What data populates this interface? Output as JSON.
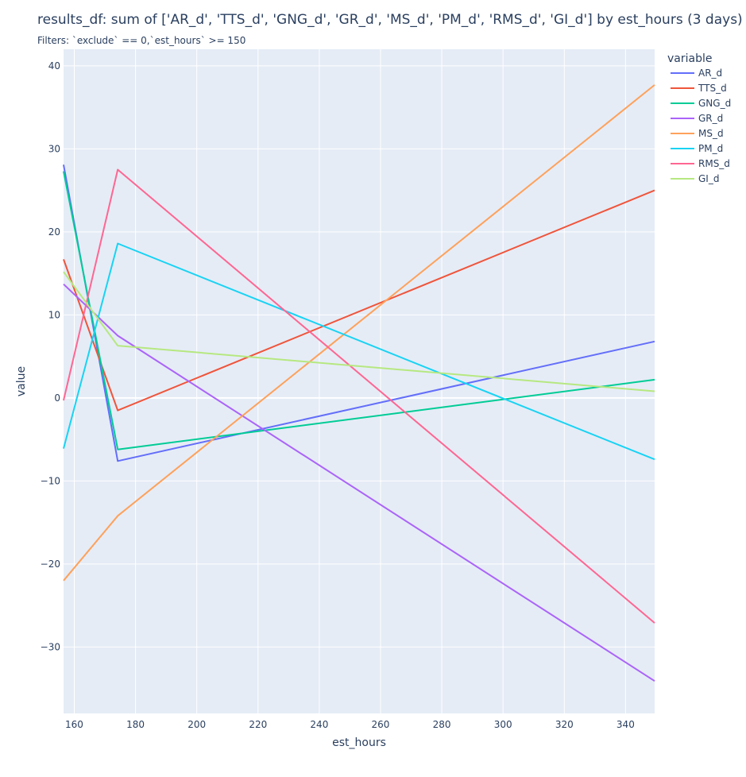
{
  "chart_data": {
    "type": "line",
    "title": "results_df: sum of ['AR_d', 'TTS_d', 'GNG_d', 'GR_d', 'MS_d', 'PM_d', 'RMS_d', 'GI_d']  by est_hours (3 days)",
    "subtitle": "Filters: `exclude` == 0,`est_hours` >= 150",
    "xlabel": "est_hours",
    "ylabel": "value",
    "xlim": [
      156.5,
      349.5
    ],
    "ylim": [
      -38,
      42
    ],
    "xticks": [
      160,
      180,
      200,
      220,
      240,
      260,
      280,
      300,
      320,
      340
    ],
    "yticks": [
      -30,
      -20,
      -10,
      0,
      10,
      20,
      30,
      40
    ],
    "grid": true,
    "legend_title": "variable",
    "legend_position": "right",
    "x": [
      156.5,
      174.2,
      349.5
    ],
    "series": [
      {
        "name": "AR_d",
        "color": "#636efa",
        "values": [
          28.1,
          -7.6,
          6.8
        ]
      },
      {
        "name": "TTS_d",
        "color": "#EF553B",
        "values": [
          16.7,
          -1.5,
          25.0
        ]
      },
      {
        "name": "GNG_d",
        "color": "#00cc96",
        "values": [
          27.3,
          -6.2,
          2.2
        ]
      },
      {
        "name": "GR_d",
        "color": "#ab63fa",
        "values": [
          13.7,
          7.5,
          -34.1
        ]
      },
      {
        "name": "MS_d",
        "color": "#FFA15A",
        "values": [
          -22.0,
          -14.2,
          37.7
        ]
      },
      {
        "name": "PM_d",
        "color": "#19d3f3",
        "values": [
          -6.1,
          18.6,
          -7.4
        ]
      },
      {
        "name": "RMS_d",
        "color": "#FF6692",
        "values": [
          -0.3,
          27.5,
          -27.1
        ]
      },
      {
        "name": "GI_d",
        "color": "#B6E880",
        "values": [
          15.2,
          6.3,
          0.8
        ]
      }
    ]
  }
}
